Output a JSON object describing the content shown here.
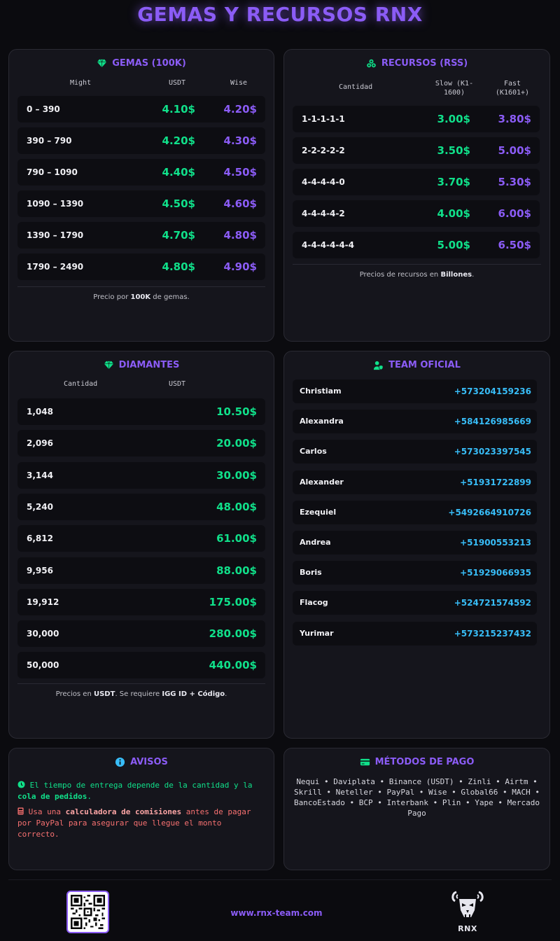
{
  "page_title": "GEMAS Y RECURSOS RNX",
  "colors": {
    "accent_purple": "#8b5cf6",
    "accent_green": "#10e08a",
    "accent_cyan": "#38bdf8",
    "warning_red": "#f87171",
    "background": "#0b0b0f",
    "card": "#15151c"
  },
  "gemas": {
    "title": "GEMAS (100K)",
    "icon": "gem-icon",
    "headers": {
      "might": "Might",
      "usdt": "USDT",
      "wise": "Wise"
    },
    "rows": [
      {
        "range": "0 – 390",
        "usdt": "4.10$",
        "wise": "4.20$"
      },
      {
        "range": "390 – 790",
        "usdt": "4.20$",
        "wise": "4.30$"
      },
      {
        "range": "790 – 1090",
        "usdt": "4.40$",
        "wise": "4.50$"
      },
      {
        "range": "1090 – 1390",
        "usdt": "4.50$",
        "wise": "4.60$"
      },
      {
        "range": "1390 – 1790",
        "usdt": "4.70$",
        "wise": "4.80$"
      },
      {
        "range": "1790 – 2490",
        "usdt": "4.80$",
        "wise": "4.90$"
      }
    ],
    "note_pre": "Precio por ",
    "note_bold": "100K",
    "note_post": " de gemas."
  },
  "recursos": {
    "title": "RECURSOS (RSS)",
    "icon": "coins-icon",
    "headers": {
      "cantidad": "Cantidad",
      "slow": "Slow (K1-1600)",
      "fast": "Fast (K1601+)"
    },
    "rows": [
      {
        "cantidad": "1-1-1-1-1",
        "slow": "3.00$",
        "fast": "3.80$"
      },
      {
        "cantidad": "2-2-2-2-2",
        "slow": "3.50$",
        "fast": "5.00$"
      },
      {
        "cantidad": "4-4-4-4-0",
        "slow": "3.70$",
        "fast": "5.30$"
      },
      {
        "cantidad": "4-4-4-4-2",
        "slow": "4.00$",
        "fast": "6.00$"
      },
      {
        "cantidad": "4-4-4-4-4-4",
        "slow": "5.00$",
        "fast": "6.50$"
      }
    ],
    "note_pre": "Precios de recursos en ",
    "note_bold": "Billones",
    "note_post": "."
  },
  "diamantes": {
    "title": "DIAMANTES",
    "icon": "gem-icon",
    "headers": {
      "cantidad": "Cantidad",
      "usdt": "USDT"
    },
    "rows": [
      {
        "cantidad": "1,048",
        "usdt": "10.50$"
      },
      {
        "cantidad": "2,096",
        "usdt": "20.00$"
      },
      {
        "cantidad": "3,144",
        "usdt": "30.00$"
      },
      {
        "cantidad": "5,240",
        "usdt": "48.00$"
      },
      {
        "cantidad": "6,812",
        "usdt": "61.00$"
      },
      {
        "cantidad": "9,956",
        "usdt": "88.00$"
      },
      {
        "cantidad": "19,912",
        "usdt": "175.00$"
      },
      {
        "cantidad": "30,000",
        "usdt": "280.00$"
      },
      {
        "cantidad": "50,000",
        "usdt": "440.00$"
      }
    ],
    "note_pre": "Precios en ",
    "note_bold1": "USDT",
    "note_mid": ". Se requiere ",
    "note_bold2": "IGG ID + Código",
    "note_post": "."
  },
  "team": {
    "title": "TEAM OFICIAL",
    "icon": "user-shield-icon",
    "members": [
      {
        "name": "Christiam",
        "phone": "+573204159236"
      },
      {
        "name": "Alexandra",
        "phone": "+584126985669"
      },
      {
        "name": "Carlos",
        "phone": "+573023397545"
      },
      {
        "name": "Alexander",
        "phone": "+51931722899"
      },
      {
        "name": "Ezequiel",
        "phone": "+5492664910726"
      },
      {
        "name": "Andrea",
        "phone": "+51900553213"
      },
      {
        "name": "Boris",
        "phone": "+51929066935"
      },
      {
        "name": "Flacog",
        "phone": "+524721574592"
      },
      {
        "name": "Yurimar",
        "phone": "+573215237432"
      }
    ]
  },
  "avisos": {
    "title": "AVISOS",
    "icon": "info-icon",
    "line1_pre": "El tiempo de entrega depende de la cantidad y la ",
    "line1_bold": "cola de pedidos",
    "line1_post": ".",
    "line2_pre": "Usa una ",
    "line2_bold": "calculadora de comisiones",
    "line2_post": " antes de pagar por PayPal para asegurar que llegue el monto correcto."
  },
  "pagos": {
    "title": "MÉTODOS DE PAGO",
    "icon": "card-icon",
    "methods": "Nequi • Daviplata • Binance (USDT) • Zinli • Airtm • Skrill • Neteller • PayPal • Wise • Global66 • MACH • BancoEstado • BCP • Interbank • Plin • Yape • Mercado Pago"
  },
  "footer": {
    "website": "www.rnx-team.com",
    "logo_text": "RNX",
    "qr_icon": "qr-code-icon",
    "logo_icon": "rnx-skull-logo-icon"
  }
}
